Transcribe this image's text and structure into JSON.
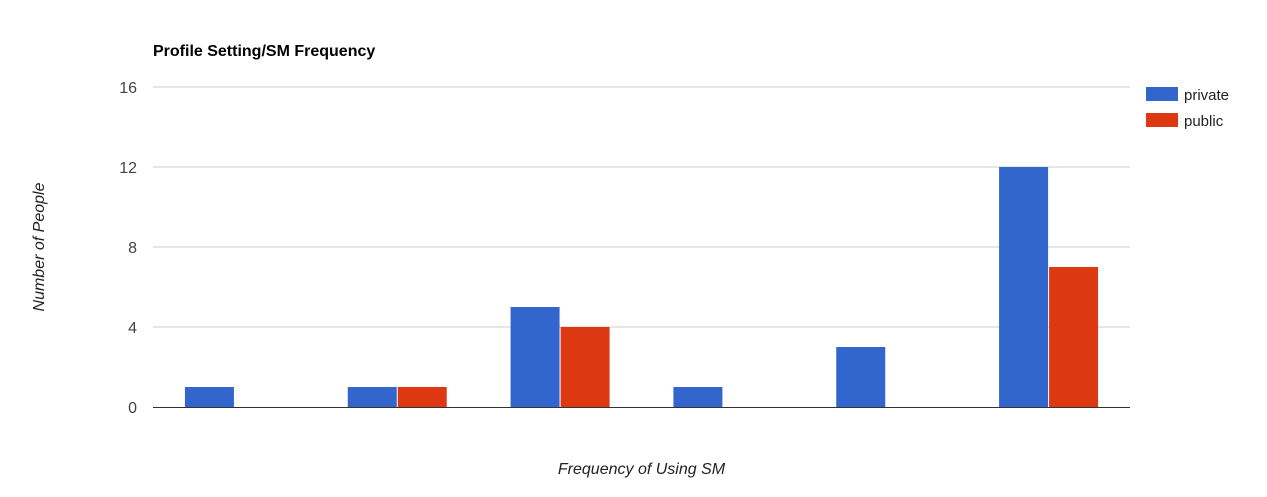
{
  "chart_data": {
    "type": "bar",
    "title": "Profile Setting/SM Frequency",
    "xlabel": "Frequency of Using SM",
    "ylabel": "Number of People",
    "categories": [
      "",
      "",
      "",
      "",
      "",
      ""
    ],
    "series": [
      {
        "name": "private",
        "color": "#3366cc",
        "values": [
          1,
          1,
          5,
          1,
          3,
          12
        ]
      },
      {
        "name": "public",
        "color": "#dc3912",
        "values": [
          0,
          1,
          4,
          0,
          0,
          7
        ]
      }
    ],
    "ylim": [
      0,
      16
    ],
    "yticks": [
      "0",
      "4",
      "8",
      "12",
      "16"
    ],
    "grid": true,
    "legend_position": "right"
  }
}
